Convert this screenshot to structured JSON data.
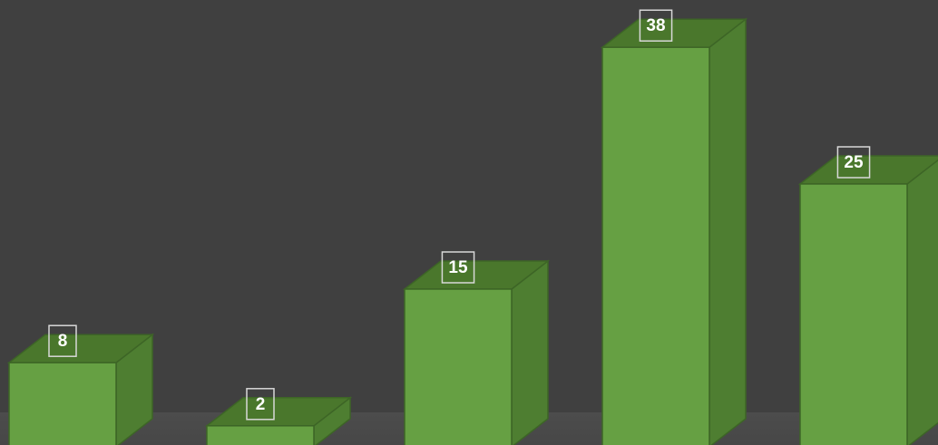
{
  "chart_data": {
    "type": "bar3d",
    "values": [
      8,
      2,
      15,
      38,
      25
    ],
    "color": "#66a043"
  }
}
